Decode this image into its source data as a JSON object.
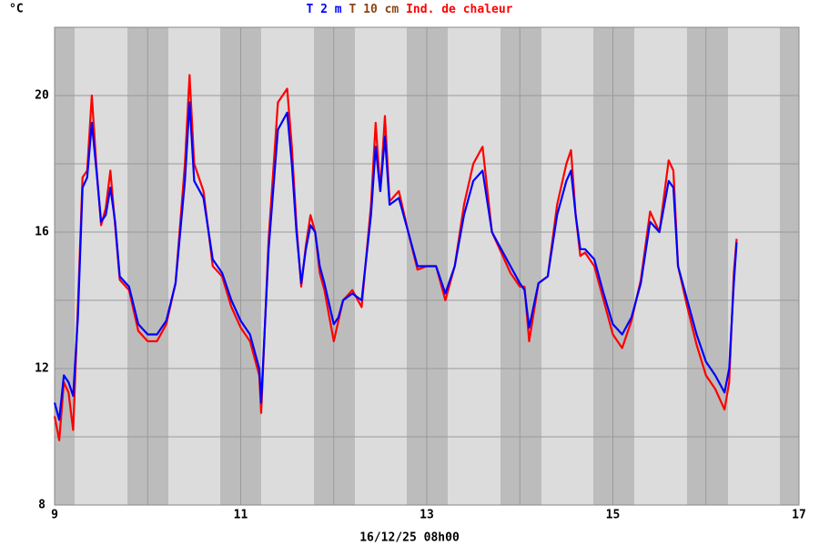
{
  "chart_data": {
    "type": "line",
    "y_label": "°C",
    "x_label": "16/12/25 08h00",
    "xlim": [
      9,
      17
    ],
    "xticks": [
      9,
      11,
      13,
      15,
      17
    ],
    "x_minor_ticks": [
      10,
      12,
      14,
      16
    ],
    "ylim": [
      8,
      22
    ],
    "yticks": [
      8,
      12,
      16,
      20
    ],
    "y_minor_ticks": [
      10,
      14,
      18
    ],
    "grid": true,
    "x": [
      9.0,
      9.05,
      9.1,
      9.15,
      9.2,
      9.25,
      9.3,
      9.35,
      9.4,
      9.45,
      9.5,
      9.55,
      9.6,
      9.65,
      9.7,
      9.8,
      9.9,
      10.0,
      10.1,
      10.2,
      10.3,
      10.4,
      10.45,
      10.5,
      10.6,
      10.7,
      10.8,
      10.9,
      11.0,
      11.1,
      11.2,
      11.22,
      11.3,
      11.4,
      11.5,
      11.55,
      11.6,
      11.65,
      11.7,
      11.75,
      11.8,
      11.85,
      11.9,
      12.0,
      12.05,
      12.1,
      12.2,
      12.3,
      12.4,
      12.45,
      12.5,
      12.55,
      12.6,
      12.7,
      12.8,
      12.9,
      13.0,
      13.1,
      13.2,
      13.3,
      13.4,
      13.5,
      13.6,
      13.7,
      13.8,
      13.9,
      14.0,
      14.05,
      14.1,
      14.2,
      14.3,
      14.4,
      14.5,
      14.55,
      14.6,
      14.65,
      14.7,
      14.8,
      14.9,
      15.0,
      15.1,
      15.2,
      15.3,
      15.4,
      15.5,
      15.6,
      15.65,
      15.7,
      15.8,
      15.9,
      16.0,
      16.1,
      16.2,
      16.25,
      16.3,
      16.33
    ],
    "series": [
      {
        "name": "T 2 m",
        "color": "#0000ff",
        "values": [
          11.0,
          10.5,
          11.8,
          11.6,
          11.2,
          13.5,
          17.3,
          17.6,
          19.2,
          17.8,
          16.3,
          16.5,
          17.3,
          16.3,
          14.7,
          14.4,
          13.3,
          13.0,
          13.0,
          13.4,
          14.5,
          17.5,
          19.8,
          17.5,
          17.0,
          15.2,
          14.8,
          14.0,
          13.4,
          13.0,
          12.0,
          11.0,
          15.5,
          19.0,
          19.5,
          18.0,
          16.0,
          14.5,
          15.5,
          16.2,
          16.0,
          15.0,
          14.5,
          13.3,
          13.5,
          14.0,
          14.2,
          14.0,
          16.5,
          18.5,
          17.2,
          18.8,
          16.8,
          17.0,
          16.0,
          15.0,
          15.0,
          15.0,
          14.2,
          15.0,
          16.5,
          17.5,
          17.8,
          16.0,
          15.5,
          15.0,
          14.5,
          14.3,
          13.2,
          14.5,
          14.7,
          16.5,
          17.5,
          17.8,
          16.5,
          15.5,
          15.5,
          15.2,
          14.2,
          13.3,
          13.0,
          13.5,
          14.5,
          16.3,
          16.0,
          17.5,
          17.3,
          15.0,
          14.0,
          13.0,
          12.2,
          11.8,
          11.3,
          12.0,
          14.5,
          15.7
        ]
      },
      {
        "name": "T 10 cm",
        "color": "#8b4513",
        "values": [
          null,
          null,
          null,
          null,
          null,
          null,
          null,
          null,
          null,
          null,
          null,
          null,
          null,
          null,
          null,
          null,
          null,
          null,
          null,
          null,
          null,
          null,
          null,
          null,
          null,
          null,
          null,
          null,
          null,
          null,
          null,
          null,
          null,
          null,
          null,
          null,
          null,
          null,
          null,
          null,
          null,
          null,
          null,
          null,
          null,
          null,
          null,
          null,
          null,
          null,
          null,
          null,
          null,
          null,
          null,
          null,
          null,
          null,
          null,
          null,
          null,
          null,
          null,
          null,
          null,
          null,
          null,
          null,
          null,
          null,
          null,
          null,
          null,
          null,
          null,
          null,
          null,
          null,
          null,
          null,
          null,
          null,
          null,
          null,
          null,
          null,
          null,
          null,
          null,
          null,
          null,
          null,
          null,
          null,
          null,
          null
        ]
      },
      {
        "name": "Ind. de chaleur",
        "color": "#ff0000",
        "values": [
          10.6,
          9.9,
          11.6,
          11.3,
          10.2,
          13.8,
          17.6,
          17.8,
          20.0,
          17.9,
          16.2,
          16.7,
          17.8,
          16.2,
          14.6,
          14.3,
          13.1,
          12.8,
          12.8,
          13.3,
          14.5,
          18.0,
          20.6,
          18.0,
          17.2,
          15.0,
          14.7,
          13.8,
          13.2,
          12.8,
          11.8,
          10.7,
          15.8,
          19.8,
          20.2,
          18.5,
          16.2,
          14.4,
          15.6,
          16.5,
          16.0,
          14.8,
          14.3,
          12.8,
          13.4,
          14.0,
          14.3,
          13.8,
          16.8,
          19.2,
          17.2,
          19.4,
          16.9,
          17.2,
          16.0,
          14.9,
          15.0,
          15.0,
          14.0,
          15.0,
          16.8,
          18.0,
          18.5,
          16.0,
          15.4,
          14.8,
          14.4,
          14.4,
          12.8,
          14.5,
          14.7,
          16.8,
          18.0,
          18.4,
          16.5,
          15.3,
          15.4,
          15.0,
          14.0,
          13.0,
          12.6,
          13.4,
          14.6,
          16.6,
          16.0,
          18.1,
          17.8,
          15.0,
          13.8,
          12.7,
          11.8,
          11.4,
          10.8,
          11.6,
          14.8,
          15.8
        ]
      }
    ]
  }
}
